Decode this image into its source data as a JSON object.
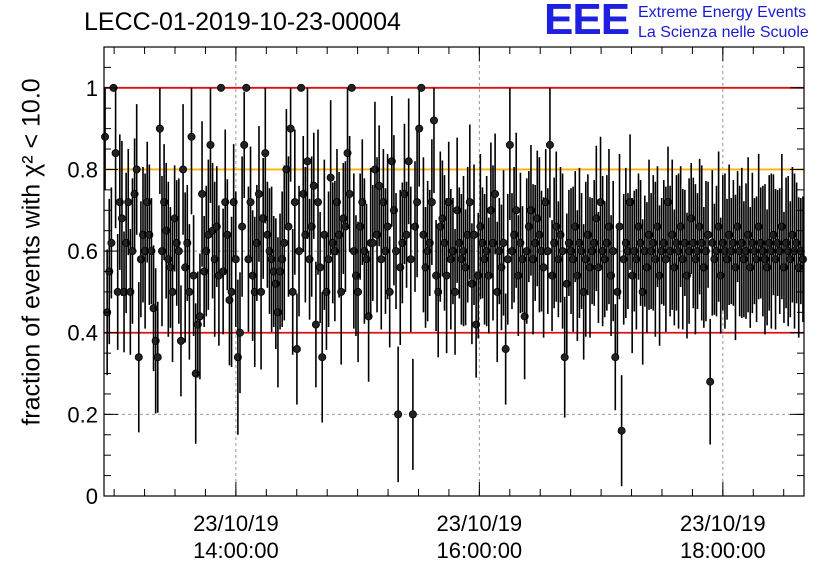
{
  "title": "LECC-01-2019-10-23-00004",
  "logo": {
    "mark": "EEE",
    "line1": "Extreme Energy Events",
    "line2": "La Scienza nelle Scuole"
  },
  "colors": {
    "red_line": "#dd1111",
    "orange_line": "#ffb000",
    "points": "#000000",
    "grid": "#999999"
  },
  "chart_data": {
    "type": "scatter",
    "title": "LECC-01-2019-10-23-00004",
    "ylabel": "fraction of events with χ² < 10.0",
    "xlabel": "",
    "xlim": [
      "12:55:00",
      "18:40:00"
    ],
    "ylim": [
      0,
      1.1
    ],
    "yticks": [
      0,
      0.2,
      0.4,
      0.6,
      0.8,
      1
    ],
    "ytick_labels": [
      "0",
      "0.2",
      "0.4",
      "0.6",
      "0.8",
      "1"
    ],
    "xticks": [
      "14:00:00",
      "16:00:00",
      "18:00:00"
    ],
    "xtick_labels": [
      {
        "date": "23/10/19",
        "time": "14:00:00"
      },
      {
        "date": "23/10/19",
        "time": "16:00:00"
      },
      {
        "date": "23/10/19",
        "time": "18:00:00"
      }
    ],
    "grid": true,
    "reference_lines": [
      {
        "y": 1.0,
        "color": "red"
      },
      {
        "y": 0.8,
        "color": "orange"
      },
      {
        "y": 0.4,
        "color": "red"
      }
    ],
    "series": [
      {
        "points_per_minute": 1,
        "start": "12:55:00",
        "y": [
          0.88,
          0.45,
          0.55,
          0.62,
          1.0,
          0.84,
          0.5,
          0.72,
          0.68,
          0.5,
          0.62,
          0.72,
          0.5,
          0.6,
          0.74,
          0.8,
          0.34,
          0.58,
          0.64,
          0.6,
          0.72,
          0.64,
          0.6,
          0.46,
          0.38,
          0.34,
          0.9,
          0.6,
          0.72,
          0.65,
          0.58,
          0.56,
          0.5,
          0.68,
          0.62,
          0.6,
          0.38,
          0.8,
          0.56,
          0.62,
          0.5,
          0.88,
          0.54,
          0.3,
          0.42,
          0.44,
          0.74,
          0.55,
          0.6,
          0.64,
          0.86,
          0.65,
          0.58,
          0.66,
          0.54,
          1.0,
          0.55,
          0.72,
          0.64,
          0.48,
          0.5,
          0.72,
          0.58,
          0.34,
          0.4,
          0.66,
          0.86,
          1.0,
          0.58,
          0.72,
          0.54,
          0.5,
          0.62,
          0.74,
          0.5,
          0.68,
          0.84,
          0.64,
          0.6,
          0.58,
          0.55,
          0.52,
          0.45,
          0.55,
          0.58,
          0.62,
          0.8,
          0.66,
          0.9,
          0.5,
          0.72,
          0.36,
          0.6,
          1.0,
          0.74,
          0.64,
          0.82,
          0.58,
          0.66,
          0.76,
          0.42,
          0.72,
          0.56,
          0.34,
          0.64,
          0.5,
          0.58,
          0.78,
          0.62,
          0.6,
          0.72,
          0.64,
          0.5,
          0.68,
          0.66,
          0.84,
          0.74,
          1.0,
          0.6,
          0.54,
          0.5,
          0.66,
          0.72,
          0.6,
          0.58,
          0.44,
          0.62,
          0.62,
          0.8,
          0.64,
          0.76,
          0.58,
          0.72,
          0.6,
          0.66,
          0.5,
          0.82,
          0.7,
          0.6,
          0.2,
          0.56,
          0.62,
          0.74,
          0.64,
          0.82,
          0.58,
          0.2,
          0.66,
          0.72,
          0.9,
          1.0,
          0.64,
          0.56,
          0.6,
          0.62,
          0.72,
          0.92,
          0.54,
          0.5,
          0.66,
          0.68,
          0.62,
          0.54,
          0.72,
          0.58,
          0.6,
          0.5,
          0.7,
          0.62,
          0.58,
          0.6,
          0.56,
          0.64,
          0.72,
          0.52,
          0.64,
          0.42,
          0.54,
          0.66,
          0.62,
          0.58,
          0.6,
          0.54,
          0.7,
          0.62,
          0.74,
          0.5,
          0.6,
          0.56,
          0.62,
          0.36,
          0.58,
          0.86,
          0.6,
          0.64,
          0.7,
          0.54,
          0.62,
          0.58,
          0.44,
          0.6,
          0.66,
          0.7,
          0.58,
          0.62,
          0.68,
          0.64,
          0.6,
          0.56,
          0.72,
          0.6,
          0.86,
          0.54,
          0.62,
          0.66,
          0.58,
          0.64,
          0.6,
          0.34,
          0.52,
          0.62,
          0.6,
          0.58,
          0.66,
          0.54,
          0.62,
          0.6,
          0.5,
          0.58,
          0.64,
          0.56,
          0.6,
          0.62,
          0.68,
          0.56,
          0.72,
          0.6,
          0.58,
          0.62,
          0.66,
          0.54,
          0.6,
          0.34,
          0.5,
          0.66,
          0.16,
          0.58,
          0.62,
          0.6,
          0.72,
          0.54,
          0.6,
          0.58,
          0.66,
          0.62,
          0.5,
          0.6,
          0.56,
          0.64,
          0.6,
          0.62,
          0.58,
          0.66,
          0.54,
          0.6,
          0.62,
          0.58,
          0.72,
          0.6,
          0.64,
          0.56,
          0.62,
          0.6,
          0.66,
          0.58,
          0.62,
          0.54,
          0.6,
          0.68,
          0.62,
          0.58,
          0.6,
          0.66,
          0.62,
          0.56,
          0.6,
          0.64,
          0.28,
          0.62,
          0.58,
          0.6,
          0.66,
          0.54,
          0.62,
          0.6,
          0.58,
          0.64,
          0.6,
          0.62,
          0.56,
          0.66,
          0.6,
          0.62,
          0.58,
          0.6,
          0.64,
          0.56,
          0.62,
          0.6,
          0.58,
          0.66,
          0.62,
          0.6,
          0.58,
          0.56,
          0.62,
          0.6,
          0.64,
          0.58,
          0.62,
          0.6,
          0.66,
          0.56,
          0.62,
          0.6,
          0.58,
          0.64,
          0.6,
          0.62,
          0.56,
          0.6,
          0.58
        ],
        "style": "black filled markers with vertical error bars"
      }
    ]
  }
}
